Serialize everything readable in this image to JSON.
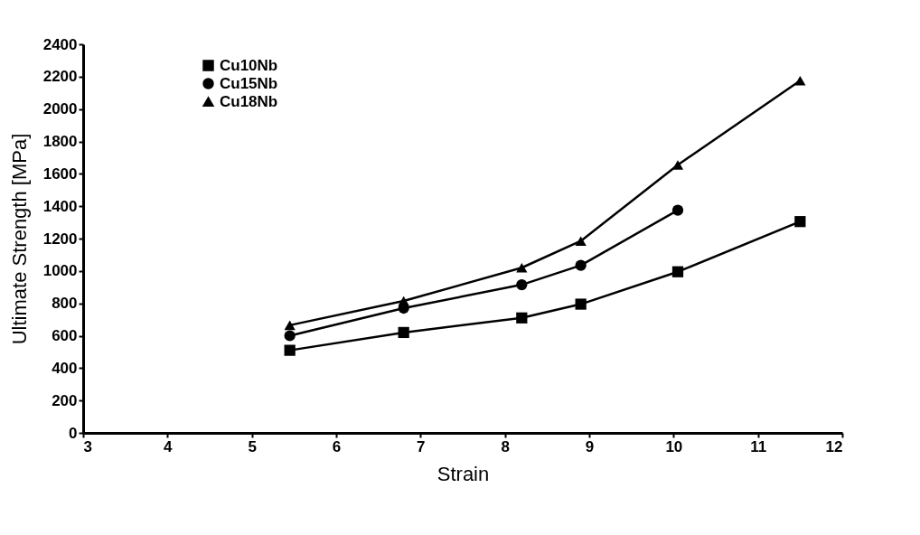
{
  "chart_data": {
    "type": "line",
    "xlabel": "Strain",
    "ylabel": "Ultimate Strength  [MPa]",
    "xlim": [
      3,
      12
    ],
    "xticks": [
      3,
      4,
      5,
      6,
      7,
      8,
      9,
      10,
      11,
      12
    ],
    "ylim": [
      0,
      2400
    ],
    "yticks": [
      0,
      200,
      400,
      600,
      800,
      1000,
      1200,
      1400,
      1600,
      1800,
      2000,
      2200,
      2400
    ],
    "grid": false,
    "legend": "top left",
    "line_style": "solid",
    "series": [
      {
        "name": "Cu10Nb",
        "color": "#000000",
        "marker": "square",
        "x": [
          5.45,
          6.8,
          8.2,
          8.9,
          10.05,
          11.5
        ],
        "values": [
          510,
          620,
          710,
          795,
          995,
          1305
        ]
      },
      {
        "name": "Cu15Nb",
        "color": "#000000",
        "marker": "circle",
        "x": [
          5.45,
          6.8,
          8.2,
          8.9,
          10.05
        ],
        "values": [
          600,
          770,
          915,
          1035,
          1375
        ]
      },
      {
        "name": "Cu18Nb",
        "color": "#000000",
        "marker": "triangle",
        "x": [
          5.45,
          6.8,
          8.2,
          8.9,
          10.05,
          11.5
        ],
        "values": [
          665,
          815,
          1020,
          1185,
          1655,
          2175
        ]
      }
    ]
  }
}
